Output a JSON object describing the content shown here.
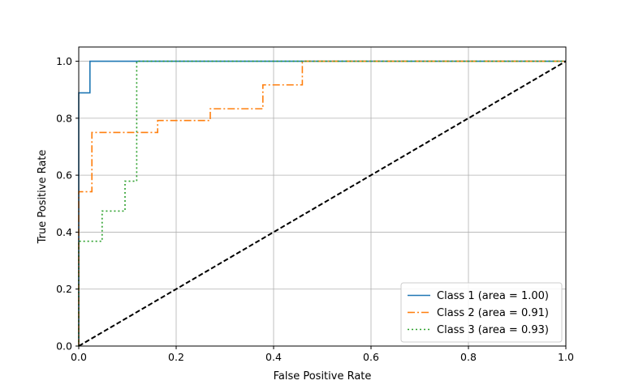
{
  "chart_data": {
    "type": "line",
    "xlabel": "False Positive Rate",
    "ylabel": "True Positive Rate",
    "xlim": [
      0.0,
      1.0
    ],
    "ylim": [
      0.0,
      1.05
    ],
    "xticks": [
      "0.0",
      "0.2",
      "0.4",
      "0.6",
      "0.8",
      "1.0"
    ],
    "yticks": [
      "0.0",
      "0.2",
      "0.4",
      "0.6",
      "0.8",
      "1.0"
    ],
    "grid": true,
    "legend_position": "lower-right",
    "series": [
      {
        "name": "Class 1 (area = 1.00)",
        "color": "#1f77b4",
        "style": "solid",
        "x": [
          0.0,
          0.0,
          0.023,
          0.023,
          1.0
        ],
        "y": [
          0.0,
          0.889,
          0.889,
          1.0,
          1.0
        ]
      },
      {
        "name": "Class 2 (area = 0.91)",
        "color": "#ff7f0e",
        "style": "dashdot",
        "x": [
          0.0,
          0.0,
          0.027,
          0.027,
          0.162,
          0.162,
          0.27,
          0.27,
          0.378,
          0.378,
          0.459,
          0.459,
          1.0
        ],
        "y": [
          0.0,
          0.542,
          0.542,
          0.75,
          0.75,
          0.792,
          0.792,
          0.833,
          0.833,
          0.917,
          0.917,
          1.0,
          1.0
        ]
      },
      {
        "name": "Class 3 (area = 0.93)",
        "color": "#2ca02c",
        "style": "dotted",
        "x": [
          0.0,
          0.0,
          0.048,
          0.048,
          0.095,
          0.095,
          0.119,
          0.119,
          1.0
        ],
        "y": [
          0.0,
          0.368,
          0.368,
          0.474,
          0.474,
          0.579,
          0.579,
          1.0,
          1.0
        ]
      },
      {
        "name": "",
        "color": "#000000",
        "style": "dashed",
        "x": [
          0.0,
          1.0
        ],
        "y": [
          0.0,
          1.0
        ]
      }
    ]
  }
}
